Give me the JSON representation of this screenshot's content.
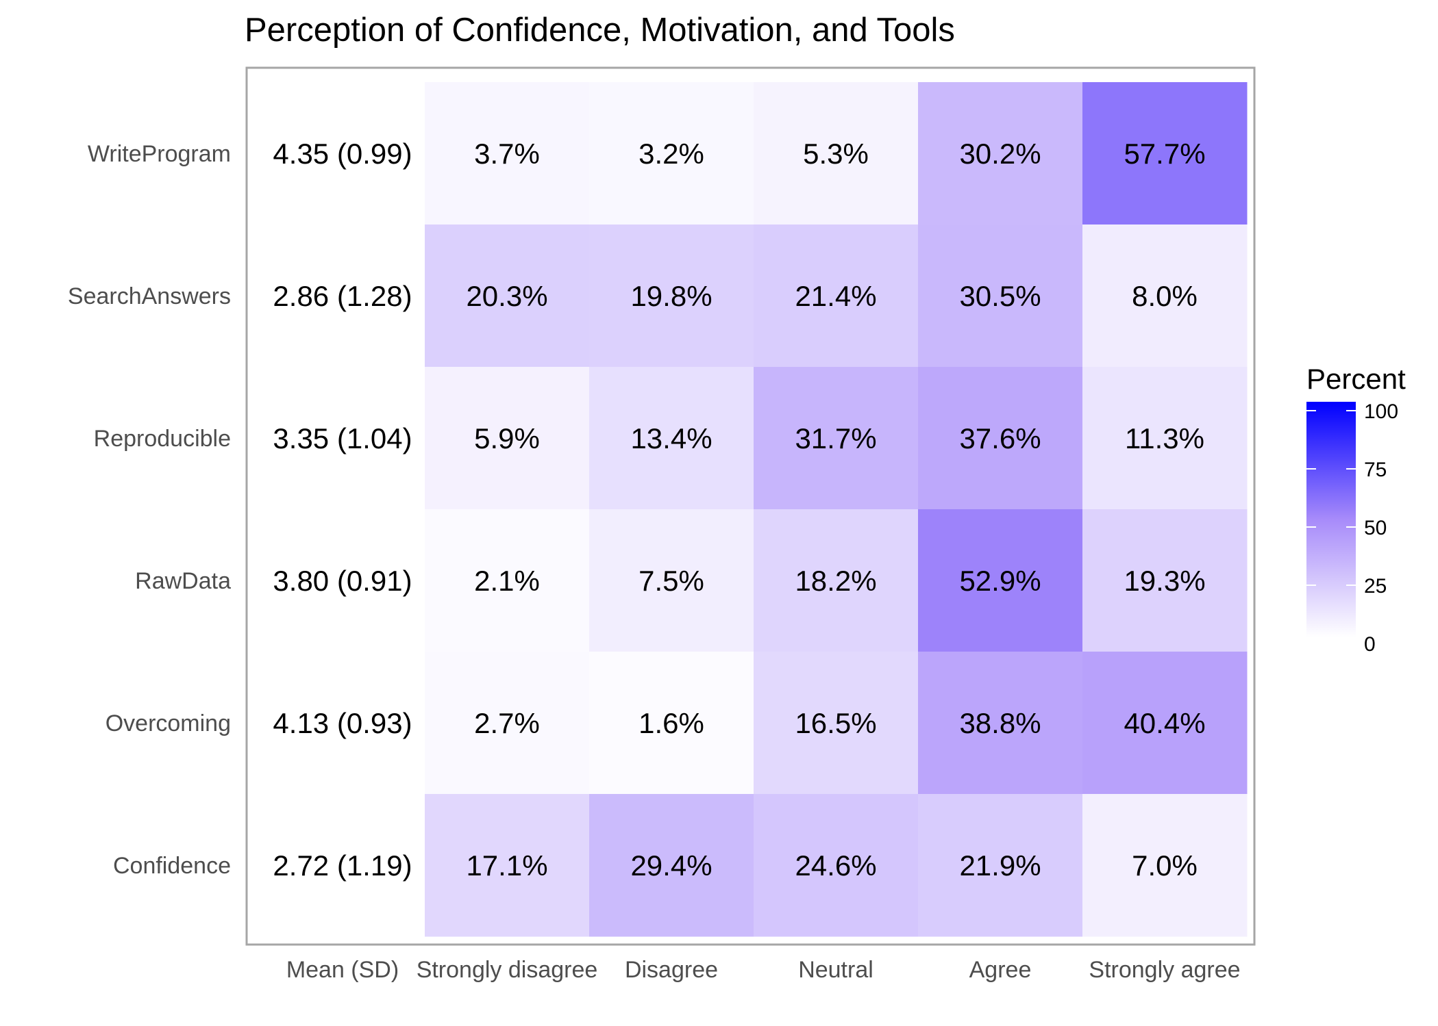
{
  "chart_data": {
    "type": "heatmap",
    "title": "Perception of Confidence, Motivation, and Tools",
    "rows": [
      "WriteProgram",
      "SearchAnswers",
      "Reproducible",
      "RawData",
      "Overcoming",
      "Confidence"
    ],
    "columns": [
      "Strongly disagree",
      "Disagree",
      "Neutral",
      "Agree",
      "Strongly agree"
    ],
    "mean_column_label": "Mean (SD)",
    "mean_sd": [
      "4.35 (0.99)",
      "2.86 (1.28)",
      "3.35 (1.04)",
      "3.80 (0.91)",
      "4.13 (0.93)",
      "2.72 (1.19)"
    ],
    "values": [
      [
        3.7,
        3.2,
        5.3,
        30.2,
        57.7
      ],
      [
        20.3,
        19.8,
        21.4,
        30.5,
        8.0
      ],
      [
        5.9,
        13.4,
        31.7,
        37.6,
        11.3
      ],
      [
        2.1,
        7.5,
        18.2,
        52.9,
        19.3
      ],
      [
        2.7,
        1.6,
        16.5,
        38.8,
        40.4
      ],
      [
        17.1,
        29.4,
        24.6,
        21.9,
        7.0
      ]
    ],
    "labels": [
      [
        "3.7%",
        "3.2%",
        "5.3%",
        "30.2%",
        "57.7%"
      ],
      [
        "20.3%",
        "19.8%",
        "21.4%",
        "30.5%",
        "8.0%"
      ],
      [
        "5.9%",
        "13.4%",
        "31.7%",
        "37.6%",
        "11.3%"
      ],
      [
        "2.1%",
        "7.5%",
        "18.2%",
        "52.9%",
        "19.3%"
      ],
      [
        "2.7%",
        "1.6%",
        "16.5%",
        "38.8%",
        "40.4%"
      ],
      [
        "17.1%",
        "29.4%",
        "24.6%",
        "21.9%",
        "7.0%"
      ]
    ],
    "legend": {
      "title": "Percent",
      "ticks": [
        "0",
        "25",
        "50",
        "75",
        "100"
      ],
      "range": [
        0,
        100
      ],
      "placement": "right",
      "colors": {
        "low": "#ffffff",
        "mid": "#a78bfa",
        "high": "#0000ff"
      }
    }
  }
}
